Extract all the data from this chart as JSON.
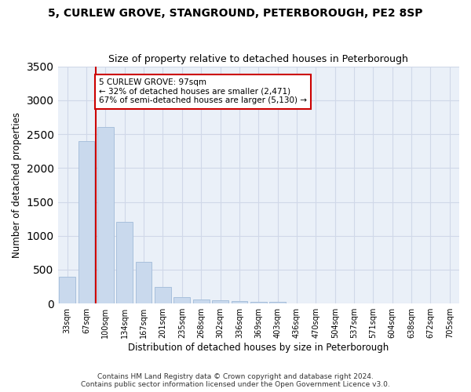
{
  "title_line1": "5, CURLEW GROVE, STANGROUND, PETERBOROUGH, PE2 8SP",
  "title_line2": "Size of property relative to detached houses in Peterborough",
  "xlabel": "Distribution of detached houses by size in Peterborough",
  "ylabel": "Number of detached properties",
  "categories": [
    "33sqm",
    "67sqm",
    "100sqm",
    "134sqm",
    "167sqm",
    "201sqm",
    "235sqm",
    "268sqm",
    "302sqm",
    "336sqm",
    "369sqm",
    "403sqm",
    "436sqm",
    "470sqm",
    "504sqm",
    "537sqm",
    "571sqm",
    "604sqm",
    "638sqm",
    "672sqm",
    "705sqm"
  ],
  "values": [
    400,
    2400,
    2600,
    1200,
    620,
    240,
    100,
    60,
    50,
    40,
    30,
    25,
    0,
    0,
    0,
    0,
    0,
    0,
    0,
    0,
    0
  ],
  "bar_color": "#c9d9ed",
  "bar_edge_color": "#a8c0dc",
  "subject_line_color": "#cc0000",
  "annotation_text": "5 CURLEW GROVE: 97sqm\n← 32% of detached houses are smaller (2,471)\n67% of semi-detached houses are larger (5,130) →",
  "annotation_box_color": "#ffffff",
  "annotation_box_edge": "#cc0000",
  "ylim": [
    0,
    3500
  ],
  "yticks": [
    0,
    500,
    1000,
    1500,
    2000,
    2500,
    3000,
    3500
  ],
  "grid_color": "#d0d8e8",
  "background_color": "#eaf0f8",
  "footer_line1": "Contains HM Land Registry data © Crown copyright and database right 2024.",
  "footer_line2": "Contains public sector information licensed under the Open Government Licence v3.0."
}
